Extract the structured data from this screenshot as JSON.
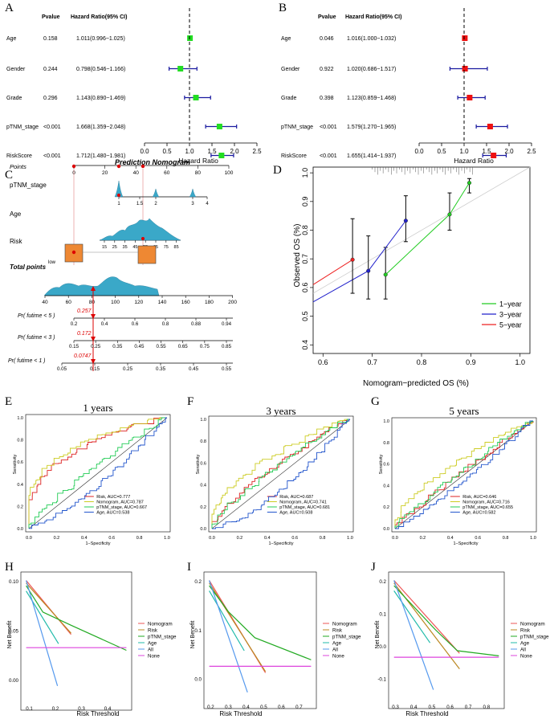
{
  "panel_letters": [
    "A",
    "B",
    "C",
    "D",
    "E",
    "F",
    "G",
    "H",
    "I",
    "J"
  ],
  "forest": {
    "header_p": "Pvalue",
    "header_hr": "Hazard Ratio(95% CI)",
    "xlabel": "Hazard Ratio",
    "ticks": [
      "0.0",
      "0.5",
      "1.0",
      "1.5",
      "2.0",
      "2.5"
    ],
    "tick_values": [
      0,
      0.5,
      1.0,
      1.5,
      2.0,
      2.5
    ],
    "A_color": "#22dd22",
    "B_color": "#ee1111",
    "ci_color": "#1a1aa0",
    "A": [
      {
        "name": "Age",
        "p": "0.158",
        "hr_text": "1.011(0.996~1.025)",
        "hr": 1.011,
        "lo": 0.996,
        "hi": 1.025
      },
      {
        "name": "Gender",
        "p": "0.244",
        "hr_text": "0.798(0.546~1.166)",
        "hr": 0.798,
        "lo": 0.546,
        "hi": 1.166
      },
      {
        "name": "Grade",
        "p": "0.296",
        "hr_text": "1.143(0.890~1.469)",
        "hr": 1.143,
        "lo": 0.89,
        "hi": 1.469
      },
      {
        "name": "pTNM_stage",
        "p": "<0.001",
        "hr_text": "1.668(1.359~2.048)",
        "hr": 1.668,
        "lo": 1.359,
        "hi": 2.048
      },
      {
        "name": "RiskScore",
        "p": "<0.001",
        "hr_text": "1.712(1.480~1.981)",
        "hr": 1.712,
        "lo": 1.48,
        "hi": 1.981
      }
    ],
    "B": [
      {
        "name": "Age",
        "p": "0.046",
        "hr_text": "1.016(1.000~1.032)",
        "hr": 1.016,
        "lo": 1.0,
        "hi": 1.032
      },
      {
        "name": "Gender",
        "p": "0.922",
        "hr_text": "1.020(0.686~1.517)",
        "hr": 1.02,
        "lo": 0.686,
        "hi": 1.517
      },
      {
        "name": "Grade",
        "p": "0.398",
        "hr_text": "1.123(0.859~1.468)",
        "hr": 1.123,
        "lo": 0.859,
        "hi": 1.468
      },
      {
        "name": "pTNM_stage",
        "p": "<0.001",
        "hr_text": "1.579(1.270~1.965)",
        "hr": 1.579,
        "lo": 1.27,
        "hi": 1.965
      },
      {
        "name": "RiskScore",
        "p": "<0.001",
        "hr_text": "1.655(1.414~1.937)",
        "hr": 1.655,
        "lo": 1.414,
        "hi": 1.937
      }
    ]
  },
  "nomogram": {
    "title": "Prediction Nomogram",
    "points_label": "Points",
    "points_ticks": [
      "0",
      "20",
      "40",
      "60",
      "80",
      "100"
    ],
    "ptnm_label": "pTNM_stage",
    "ptnm_ticks": [
      "1",
      "1.5",
      "2",
      "3",
      "4"
    ],
    "age_label": "Age",
    "age_ticks": [
      "15",
      "25",
      "35",
      "45",
      "55",
      "65",
      "75",
      "85"
    ],
    "risk_label": "Risk",
    "risk_low": "low",
    "risk_high": "high",
    "total_label": "Total points",
    "total_ticks": [
      "40",
      "60",
      "80",
      "100",
      "120",
      "140",
      "160",
      "180",
      "200"
    ],
    "rows": [
      {
        "label": "Pr( futime < 5 )",
        "value": "0.257",
        "ticks": [
          "0.2",
          "0.4",
          "0.6",
          "0.8",
          "0.88",
          "0.94"
        ]
      },
      {
        "label": "Pr( futime < 3 )",
        "value": "0.172",
        "ticks": [
          "0.15",
          "0.25",
          "0.35",
          "0.45",
          "0.55",
          "0.65",
          "0.75",
          "0.85"
        ]
      },
      {
        "label": "Pr( futime < 1 )",
        "value": "0.0747",
        "ticks": [
          "0.05",
          "0.15",
          "0.25",
          "0.35",
          "0.45",
          "0.55"
        ]
      }
    ]
  },
  "calibration": {
    "xlabel": "Nomogram−predicted OS (%)",
    "ylabel": "Observed OS (%)",
    "xticks": [
      "0.6",
      "0.7",
      "0.8",
      "0.9",
      "1.0"
    ],
    "yticks": [
      "0.4",
      "0.5",
      "0.6",
      "0.7",
      "0.8",
      "0.9",
      "1.0"
    ],
    "series": [
      {
        "name": "1−year",
        "color": "#22cc22",
        "x": [
          0.727,
          0.857,
          0.897
        ],
        "y": [
          0.645,
          0.855,
          0.965
        ],
        "lo": [
          0.56,
          0.8,
          0.93
        ],
        "hi": [
          0.74,
          0.93,
          0.98
        ]
      },
      {
        "name": "3−year",
        "color": "#2222cc",
        "x": [
          0.692,
          0.768
        ],
        "y": [
          0.658,
          0.833
        ],
        "lo": [
          0.56,
          0.76
        ],
        "hi": [
          0.78,
          0.92
        ]
      },
      {
        "name": "5−year",
        "color": "#ee2222",
        "x": [
          0.66
        ],
        "y": [
          0.697
        ],
        "lo": [
          0.58
        ],
        "hi": [
          0.84
        ]
      }
    ]
  },
  "roc": {
    "xlabel": "1−Specificity",
    "ylabel": "Sensitivity",
    "ticks": [
      "0.0",
      "0.2",
      "0.4",
      "0.6",
      "0.8",
      "1.0"
    ],
    "colors": {
      "Risk": "#dd2222",
      "Nomogram": "#cccc22",
      "pTNM_stage": "#22cc55",
      "Age": "#2255cc"
    },
    "panels": [
      {
        "title": "1 years",
        "legend": [
          "Risk, AUC=0.777",
          "Nomogram, AUC=0.787",
          "pTNM_stage, AUC=0.667",
          "Age, AUC=0.538"
        ]
      },
      {
        "title": "3 years",
        "legend": [
          "Risk, AUC=0.687",
          "Nomogram, AUC=0.741",
          "pTNM_stage, AUC=0.681",
          "Age, AUC=0.508"
        ]
      },
      {
        "title": "5 years",
        "legend": [
          "Risk, AUC=0.646",
          "Nomogram, AUC=0.716",
          "pTNM_stage, AUC=0.655",
          "Age, AUC=0.582"
        ]
      }
    ]
  },
  "dca": {
    "xlabel": "Risk Threshold",
    "ylabel": "Net Benefit",
    "legend": [
      "Nomogram",
      "Risk",
      "pTNM_stage",
      "Age",
      "All",
      "None"
    ],
    "colors": [
      "#ee5555",
      "#bb8822",
      "#22aa22",
      "#22bbaa",
      "#5599ee",
      "#dd44dd"
    ],
    "panels": [
      {
        "xticks": [
          "0.1",
          "0.2",
          "0.3",
          "0.4"
        ],
        "yticks": [
          "0.00",
          "0.05",
          "0.10"
        ]
      },
      {
        "xticks": [
          "0.2",
          "0.3",
          "0.4",
          "0.5",
          "0.6",
          "0.7"
        ],
        "yticks": [
          "0.0",
          "0.1",
          "0.2"
        ]
      },
      {
        "xticks": [
          "0.3",
          "0.4",
          "0.5",
          "0.6",
          "0.7",
          "0.8"
        ],
        "yticks": [
          "-0.1",
          "0.0",
          "0.1",
          "0.2"
        ]
      }
    ]
  }
}
